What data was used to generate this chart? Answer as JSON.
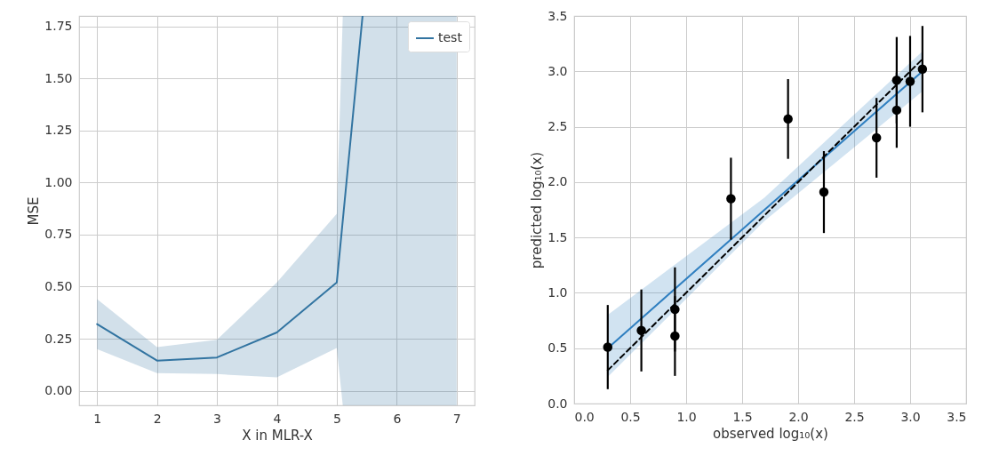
{
  "chart_data": [
    {
      "type": "line",
      "xlabel": "X in MLR-X",
      "ylabel": "MSE",
      "x": [
        1,
        2,
        3,
        4,
        5,
        5.1,
        5.43,
        7
      ],
      "series": [
        {
          "name": "test",
          "color": "#3274a1",
          "values": [
            0.32,
            0.145,
            0.16,
            0.28,
            0.52,
            null,
            1.8,
            null
          ],
          "lower": [
            0.2,
            0.085,
            0.08,
            0.065,
            0.205,
            -0.07,
            -0.07,
            -0.07
          ],
          "upper": [
            0.44,
            0.21,
            0.245,
            0.52,
            0.85,
            1.8,
            1.8,
            1.8
          ]
        }
      ],
      "xlim": [
        0.7,
        7.3
      ],
      "xticks": [
        1,
        2,
        3,
        4,
        5,
        6,
        7
      ],
      "ylim": [
        -0.07,
        1.8
      ],
      "yticks": [
        {
          "value": 0,
          "label": "0.00"
        },
        {
          "value": 0.25,
          "label": "0.25"
        },
        {
          "value": 0.5,
          "label": "0.50"
        },
        {
          "value": 0.75,
          "label": "0.75"
        },
        {
          "value": 1,
          "label": "1.00"
        },
        {
          "value": 1.25,
          "label": "1.25"
        },
        {
          "value": 1.5,
          "label": "1.50"
        },
        {
          "value": 1.75,
          "label": "1.75"
        }
      ],
      "grid": true,
      "legend": "top right"
    },
    {
      "type": "scatter",
      "xlabel": "observed log₁₀(x)",
      "ylabel": "predicted log₁₀(x)",
      "x": [
        0.3,
        0.6,
        0.9,
        0.9,
        1.4,
        1.91,
        2.23,
        2.7,
        2.88,
        2.88,
        3.0,
        3.11
      ],
      "series": [
        {
          "marker": "circle",
          "color": "#000000",
          "values": [
            0.51,
            0.66,
            0.85,
            0.61,
            1.85,
            2.57,
            1.91,
            2.4,
            2.92,
            2.65,
            2.91,
            3.02
          ],
          "errors": [
            0.38,
            0.37,
            0.38,
            0.36,
            0.37,
            0.36,
            0.37,
            0.36,
            0.39,
            0.34,
            0.41,
            0.39
          ]
        },
        {
          "type": "line",
          "color": "#2f7fc0",
          "x": [
            0.3,
            1.7,
            3.11
          ],
          "values": [
            0.5,
            1.75,
            3.0
          ],
          "lower": [
            0.24,
            1.65,
            2.82
          ],
          "upper": [
            0.8,
            1.86,
            3.18
          ]
        },
        {
          "type": "line",
          "color": "#000000",
          "line_style": "dashed",
          "x": [
            0.3,
            3.11
          ],
          "values": [
            0.3,
            3.11
          ]
        }
      ],
      "xlim": [
        0,
        3.5
      ],
      "xticks": [
        {
          "value": 0,
          "label": "0.0"
        },
        {
          "value": 0.5,
          "label": "0.5"
        },
        {
          "value": 1,
          "label": "1.0"
        },
        {
          "value": 1.5,
          "label": "1.5"
        },
        {
          "value": 2,
          "label": "2.0"
        },
        {
          "value": 2.5,
          "label": "2.5"
        },
        {
          "value": 3,
          "label": "3.0"
        },
        {
          "value": 3.5,
          "label": "3.5"
        }
      ],
      "ylim": [
        0,
        3.5
      ],
      "yticks": [
        {
          "value": 0,
          "label": "0.0"
        },
        {
          "value": 0.5,
          "label": "0.5"
        },
        {
          "value": 1,
          "label": "1.0"
        },
        {
          "value": 1.5,
          "label": "1.5"
        },
        {
          "value": 2,
          "label": "2.0"
        },
        {
          "value": 2.5,
          "label": "2.5"
        },
        {
          "value": 3,
          "label": "3.0"
        },
        {
          "value": 3.5,
          "label": "3.5"
        }
      ],
      "grid": true
    }
  ]
}
